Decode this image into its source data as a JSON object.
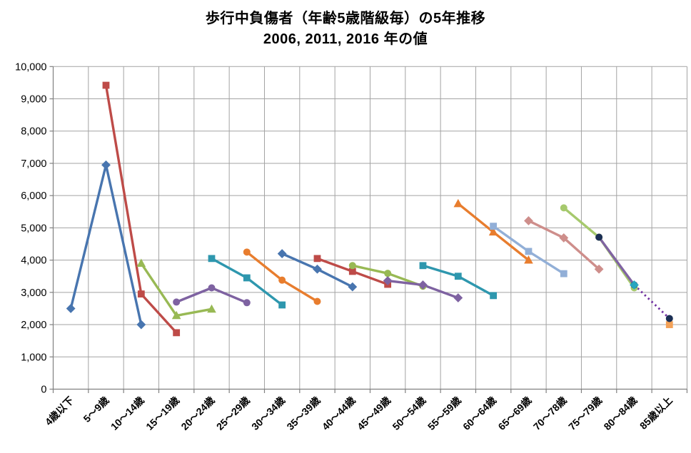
{
  "page": {
    "background": "#FFFFFF"
  },
  "chart_data": {
    "type": "line",
    "title": "歩行中負傷者（年齢5歳階級毎）の5年推移",
    "subtitle": "2006, 2011, 2016 年の値",
    "legend": "none",
    "categories": [
      "4歳以下",
      "5～9歳",
      "10～14歳",
      "15～19歳",
      "20～24歳",
      "25～29歳",
      "30～34歳",
      "35～39歳",
      "40～44歳",
      "45～49歳",
      "50～54歳",
      "55～59歳",
      "60～64歳",
      "65～69歳",
      "70～78歳",
      "75～79歳",
      "80～84歳",
      "85歳以上"
    ],
    "y_axis": {
      "min": 0,
      "max": 10000,
      "step": 1000,
      "tick_labels": [
        "0",
        "1,000",
        "2,000",
        "3,000",
        "4,000",
        "5,000",
        "6,000",
        "7,000",
        "8,000",
        "9,000",
        "10,000"
      ]
    },
    "grid": {
      "horizontal": true,
      "vertical": true
    },
    "series": [
      {
        "name": "cohort-01",
        "marker": "diamond",
        "color": "#4875AF",
        "start_category": 1,
        "values": [
          2500,
          6950,
          2000
        ]
      },
      {
        "name": "cohort-02",
        "marker": "square",
        "color": "#BE4B48",
        "start_category": 2,
        "values": [
          9420,
          2950,
          1750
        ]
      },
      {
        "name": "cohort-03",
        "marker": "triangle",
        "color": "#98B954",
        "start_category": 3,
        "values": [
          3900,
          2280,
          2480
        ]
      },
      {
        "name": "cohort-04",
        "marker": "circle",
        "color": "#7E62A1",
        "start_category": 4,
        "values": [
          2700,
          3140,
          2680
        ]
      },
      {
        "name": "cohort-05",
        "marker": "square",
        "color": "#2E97AE",
        "start_category": 5,
        "values": [
          4050,
          3450,
          2610
        ]
      },
      {
        "name": "cohort-06",
        "marker": "circle",
        "color": "#E87D2E",
        "start_category": 6,
        "values": [
          4250,
          3380,
          2720
        ]
      },
      {
        "name": "cohort-07",
        "marker": "diamond",
        "color": "#4875AF",
        "start_category": 7,
        "values": [
          4200,
          3720,
          3170
        ]
      },
      {
        "name": "cohort-08",
        "marker": "square",
        "color": "#BE4B48",
        "start_category": 8,
        "values": [
          4050,
          3650,
          3250
        ]
      },
      {
        "name": "cohort-09",
        "marker": "circle",
        "color": "#98B954",
        "start_category": 9,
        "values": [
          3830,
          3590,
          3190
        ]
      },
      {
        "name": "cohort-10",
        "marker": "diamond",
        "color": "#7E62A1",
        "start_category": 10,
        "values": [
          3360,
          3230,
          2830
        ]
      },
      {
        "name": "cohort-11",
        "marker": "square",
        "color": "#2E97AE",
        "start_category": 11,
        "values": [
          3830,
          3500,
          2900
        ]
      },
      {
        "name": "cohort-12",
        "marker": "triangle",
        "color": "#E87D2E",
        "start_category": 12,
        "values": [
          5750,
          4870,
          4000
        ]
      },
      {
        "name": "cohort-13",
        "marker": "square",
        "color": "#92AFD7",
        "start_category": 13,
        "values": [
          5050,
          4270,
          3580
        ]
      },
      {
        "name": "cohort-14",
        "marker": "diamond",
        "color": "#CE8E8B",
        "start_category": 14,
        "values": [
          5220,
          4690,
          3720
        ]
      },
      {
        "name": "cohort-15",
        "marker": "circle",
        "color": "#A6C96D",
        "start_category": 15,
        "values": [
          5620,
          4710,
          3140
        ]
      },
      {
        "name": "cohort-16",
        "marker": "circle",
        "color": "#8064A2",
        "marker_color": "#1B2F54",
        "start_category": 16,
        "values": [
          4710,
          3230
        ]
      },
      {
        "name": "cohort-17",
        "marker": "none",
        "color": "#7030A0",
        "start_category": 17,
        "values": [
          3230,
          2190
        ],
        "dashed": true
      }
    ],
    "extra_markers": [
      {
        "category": 18,
        "value": 2000,
        "marker": "square",
        "color": "#F3A157",
        "layer": "under"
      },
      {
        "category": 18,
        "value": 2190,
        "marker": "circle",
        "color": "#1B2F54",
        "layer": "over"
      },
      {
        "category": 17,
        "value": 3230,
        "marker": "diamond",
        "color": "#28A5BE",
        "layer": "over"
      }
    ],
    "colors": {
      "gridline": "#A3A3A3",
      "axis": "#808080",
      "text": "#000000"
    }
  }
}
